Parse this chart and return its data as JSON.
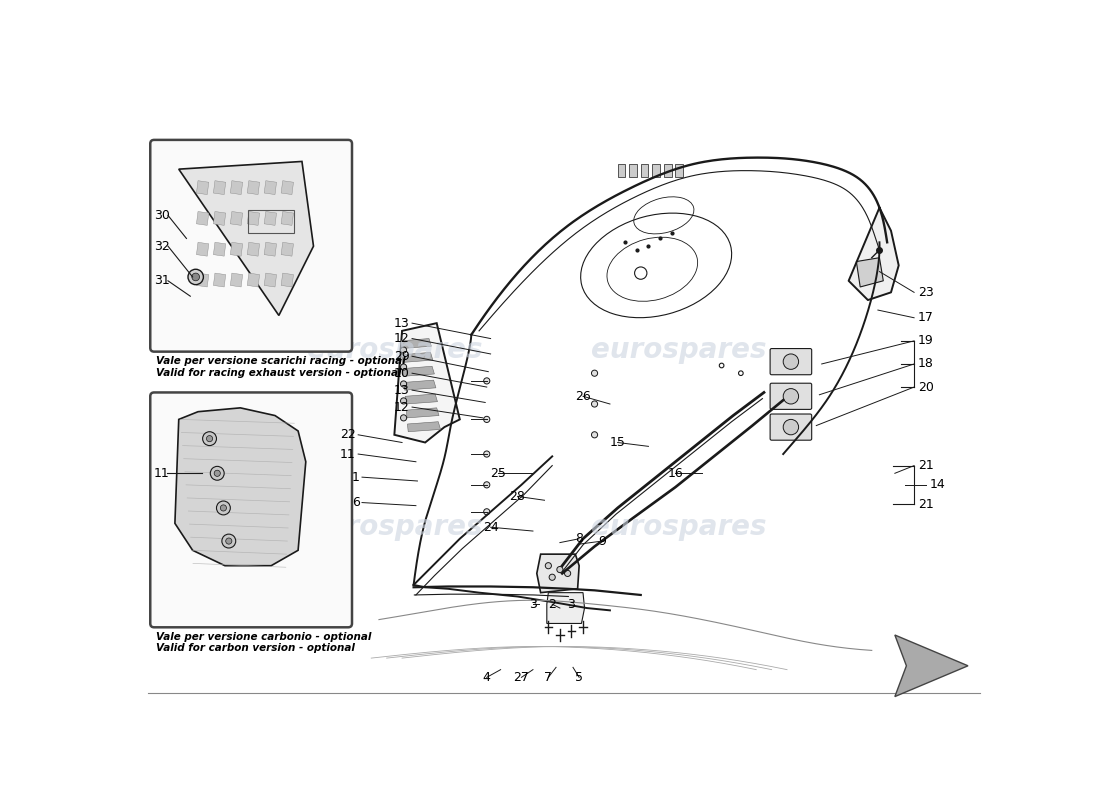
{
  "bg_color": "#ffffff",
  "line_color": "#1a1a1a",
  "watermark_color": "#ccd4e0",
  "box1_text_line1": "Vale per versione scarichi racing - optional",
  "box1_text_line2": "Valid for racing exhaust version - optional",
  "box2_text_line1": "Vale per versione carbonio - optional",
  "box2_text_line2": "Valid for carbon version - optional",
  "lw_main": 1.4,
  "lw_thin": 0.8,
  "lw_thick": 2.0
}
